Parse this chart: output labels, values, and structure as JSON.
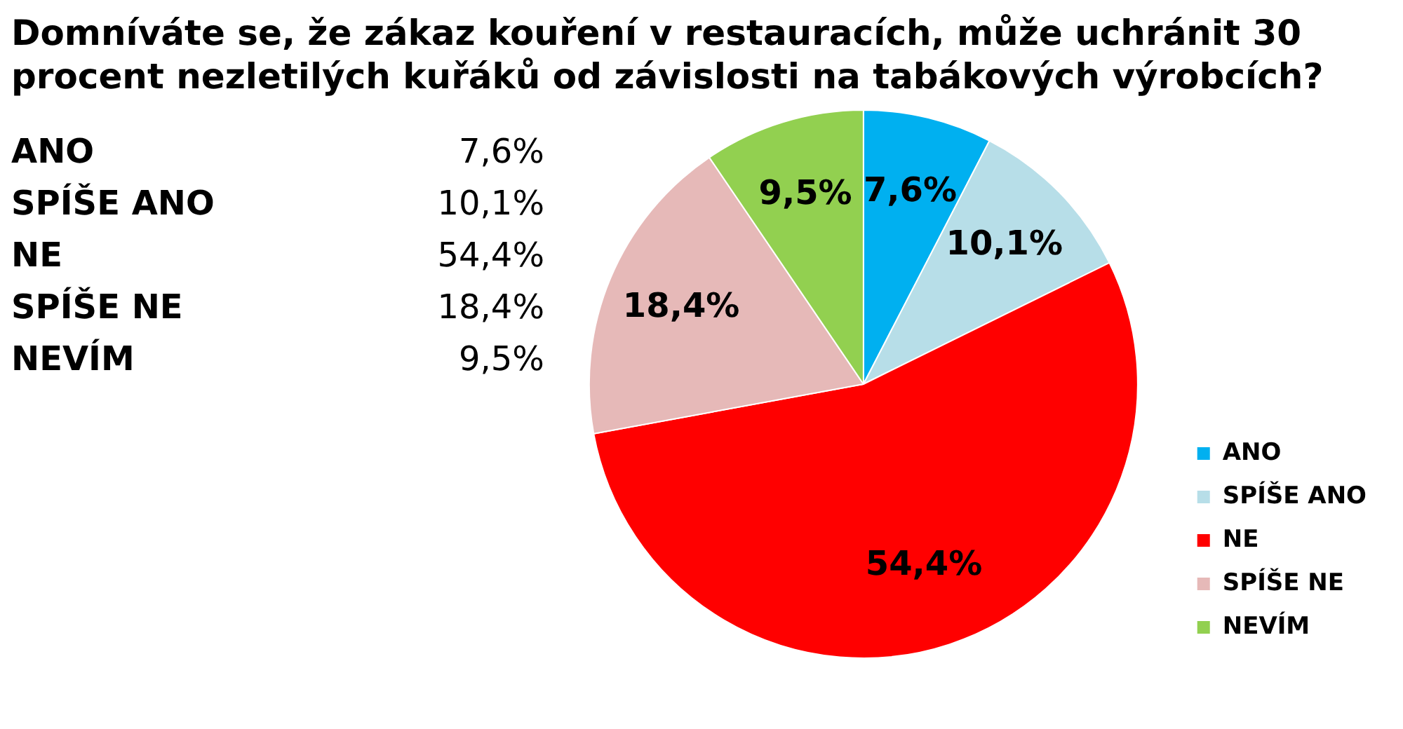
{
  "chart_data": {
    "type": "pie",
    "title": "Domníváte se, že zákaz kouření v restauracích, může uchránit 30 procent nezletilých kuřáků od závislosti na tabákových výrobcích?",
    "categories": [
      "ANO",
      "SPÍŠE ANO",
      "NE",
      "SPÍŠE NE",
      "NEVÍM"
    ],
    "values": [
      7.6,
      10.1,
      54.4,
      18.4,
      9.5
    ],
    "value_labels": [
      "7,6%",
      "10,1%",
      "54,4%",
      "18,4%",
      "9,5%"
    ],
    "colors": [
      "#00b0f0",
      "#b7dee8",
      "#ff0000",
      "#e6b9b8",
      "#92d050"
    ],
    "legend": "bottom right"
  }
}
